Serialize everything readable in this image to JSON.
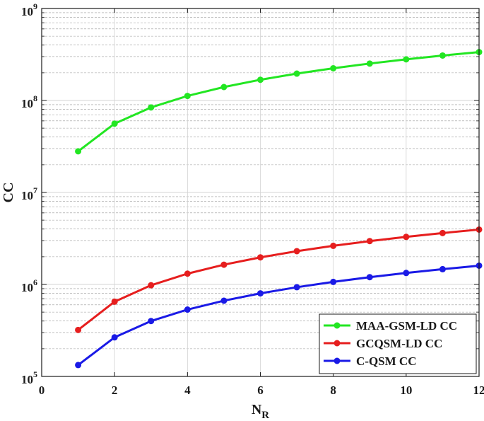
{
  "chart_data": {
    "type": "line",
    "title": "",
    "xlabel_main": "N",
    "xlabel_sub": "R",
    "ylabel": "CC",
    "xlim": [
      0,
      12
    ],
    "ylim": [
      100000,
      1000000000
    ],
    "yscale": "log",
    "grid": true,
    "legend_position": "bottom-right",
    "x_ticks": [
      "0",
      "2",
      "4",
      "6",
      "8",
      "10",
      "12"
    ],
    "y_ticks": [
      {
        "base": "10",
        "exp": "5"
      },
      {
        "base": "10",
        "exp": "6"
      },
      {
        "base": "10",
        "exp": "7"
      },
      {
        "base": "10",
        "exp": "8"
      },
      {
        "base": "10",
        "exp": "9"
      }
    ],
    "x": [
      1,
      2,
      3,
      4,
      5,
      6,
      7,
      8,
      9,
      10,
      11,
      12
    ],
    "series": [
      {
        "name": "MAA-GSM-LD CC",
        "color": "#22e622",
        "values": [
          28000000,
          56000000,
          84000000,
          112000000,
          140000000,
          168000000,
          196000000,
          224000000,
          252000000,
          280000000,
          308000000,
          336000000
        ]
      },
      {
        "name": "GCQSM-LD CC",
        "color": "#e61e1e",
        "values": [
          320000,
          650000,
          980000,
          1310000,
          1640000,
          1970000,
          2300000,
          2630000,
          2960000,
          3290000,
          3620000,
          3950000
        ]
      },
      {
        "name": "C-QSM CC",
        "color": "#1a1ae6",
        "values": [
          133000,
          266000,
          400000,
          533000,
          666000,
          800000,
          933000,
          1066000,
          1200000,
          1333000,
          1466000,
          1600000
        ]
      }
    ]
  }
}
